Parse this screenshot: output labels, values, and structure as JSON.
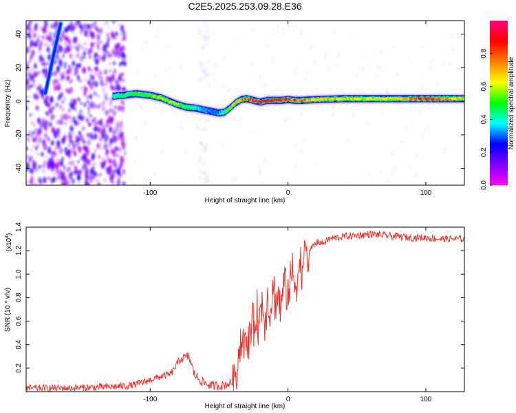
{
  "title": "C2E5.2025.253.09.28.E36",
  "colors": {
    "snr_line": "#e8322a",
    "scatter_point": "#8a2be2"
  },
  "chart_data": [
    {
      "type": "heatmap",
      "xlabel": "Height of straight line (km)",
      "ylabel": "Frequency (Hz)",
      "xlim": [
        -190,
        128
      ],
      "ylim": [
        -50,
        48
      ],
      "x_ticks": [
        -100,
        0,
        100
      ],
      "y_ticks": [
        -40,
        -20,
        0,
        20,
        40
      ],
      "colorbar": {
        "label": "Normalized spectral amplitude",
        "range": [
          0,
          1
        ],
        "ticks": [
          "0.0",
          "0.2",
          "0.4",
          "0.6",
          "0.8"
        ],
        "colormap": [
          "#ff00ff",
          "#8000ff",
          "#0000ff",
          "#00ffff",
          "#00ff00",
          "#ffff00",
          "#ff8000",
          "#ff0000",
          "#ff0080"
        ]
      },
      "ridge": {
        "x": [
          -127,
          -120,
          -110,
          -100,
          -92,
          -86,
          -80,
          -74,
          -68,
          -62,
          -56,
          -50,
          -46,
          -42,
          -38,
          -34,
          -30,
          -25,
          -20,
          -15,
          -10,
          -5,
          0,
          5,
          10,
          20,
          40,
          60,
          80,
          100,
          128
        ],
        "y": [
          3,
          3.5,
          4.5,
          3.5,
          2,
          0,
          -2,
          -3.5,
          -4,
          -5,
          -6,
          -7,
          -6.5,
          -4,
          -1,
          1,
          1.5,
          0.5,
          -0.5,
          0.5,
          0.5,
          0.5,
          1,
          0.5,
          0.5,
          1,
          1.5,
          1.5,
          1.5,
          1.5,
          1.5
        ],
        "amplitude": [
          0.4,
          0.45,
          0.5,
          0.55,
          0.6,
          0.6,
          0.55,
          0.5,
          0.4,
          0.35,
          0.3,
          0.3,
          0.45,
          0.55,
          0.65,
          0.75,
          0.8,
          0.85,
          0.9,
          0.9,
          0.9,
          0.85,
          0.85,
          0.8,
          0.75,
          0.7,
          0.65,
          0.6,
          0.65,
          0.85,
          0.6
        ]
      },
      "streak": {
        "x": [
          -176,
          -170,
          -165
        ],
        "y": [
          5,
          28,
          46
        ]
      }
    },
    {
      "type": "line",
      "xlabel": "Height of straight line (km)",
      "ylabel": "SNR (10 * v/v)",
      "y_multiplier": "(x10",
      "y_multiplier_exp": "4",
      "xlim": [
        -190,
        128
      ],
      "ylim": [
        0,
        1.4
      ],
      "x_ticks": [
        -100,
        0,
        100
      ],
      "y_ticks": [
        "0.2",
        "0.4",
        "0.6",
        "0.8",
        "1.0",
        "1.2",
        "1.4"
      ],
      "series": [
        {
          "x": [
            -190,
            -160,
            -130,
            -115,
            -105,
            -95,
            -85,
            -78,
            -72,
            -68,
            -64,
            -60,
            -55,
            -50,
            -45,
            -40,
            -37,
            -35,
            -33,
            -31,
            -29,
            -27,
            -25,
            -23,
            -21,
            -19,
            -17,
            -15,
            -13,
            -11,
            -9,
            -7,
            -5,
            -3,
            -1,
            1,
            3,
            5,
            7,
            9,
            11,
            13,
            15,
            17,
            19,
            22,
            25,
            30,
            40,
            50,
            60,
            70,
            80,
            90,
            100,
            110,
            120,
            128
          ],
          "values": [
            0.03,
            0.03,
            0.04,
            0.05,
            0.08,
            0.12,
            0.15,
            0.28,
            0.3,
            0.15,
            0.1,
            0.07,
            0.05,
            0.05,
            0.06,
            0.08,
            0.22,
            0.38,
            0.48,
            0.35,
            0.42,
            0.6,
            0.52,
            0.7,
            0.55,
            0.78,
            0.62,
            0.8,
            0.68,
            0.88,
            0.76,
            0.82,
            0.7,
            0.95,
            0.85,
            0.9,
            1.0,
            0.92,
            1.02,
            1.05,
            1.1,
            1.18,
            1.15,
            1.22,
            1.25,
            1.28,
            1.26,
            1.3,
            1.32,
            1.33,
            1.34,
            1.33,
            1.32,
            1.31,
            1.31,
            1.3,
            1.3,
            1.3
          ],
          "noise": 0.03
        }
      ]
    }
  ]
}
